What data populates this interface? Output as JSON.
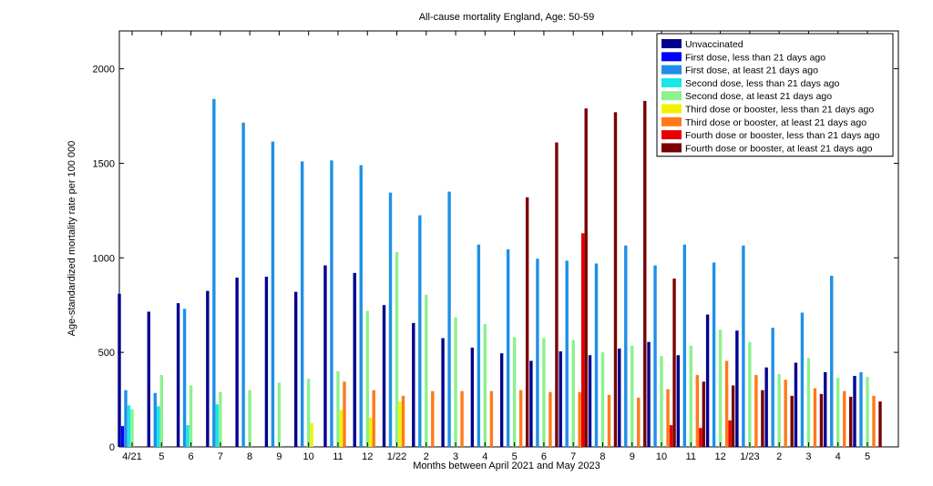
{
  "chart_data": {
    "type": "bar",
    "title": "All-cause mortality England, Age: 50-59",
    "xlabel": "Months between April 2021 and May 2023",
    "ylabel": "Age-standardized mortality rate per 100 000",
    "ylim": [
      0,
      2200
    ],
    "yticks": [
      0,
      500,
      1000,
      1500,
      2000
    ],
    "grid": false,
    "legend_position": "top-right",
    "categories": [
      "4/21",
      "5",
      "6",
      "7",
      "8",
      "9",
      "10",
      "11",
      "12",
      "1/22",
      "2",
      "3",
      "4",
      "5",
      "6",
      "7",
      "8",
      "9",
      "10",
      "11",
      "12",
      "1/23",
      "2",
      "3",
      "4",
      "5"
    ],
    "series": [
      {
        "name": "Unvaccinated",
        "color": "#00008f",
        "values": [
          810,
          715,
          760,
          825,
          895,
          900,
          820,
          960,
          920,
          750,
          655,
          575,
          525,
          495,
          455,
          505,
          485,
          520,
          555,
          485,
          700,
          615,
          420,
          445,
          395,
          375
        ]
      },
      {
        "name": "First dose, less than 21 days ago",
        "color": "#0000ff",
        "values": [
          110,
          null,
          null,
          null,
          null,
          null,
          null,
          null,
          null,
          null,
          null,
          null,
          null,
          null,
          null,
          null,
          null,
          null,
          null,
          null,
          null,
          null,
          null,
          null,
          null,
          null
        ]
      },
      {
        "name": "First dose, at least 21 days ago",
        "color": "#1e90e6",
        "values": [
          300,
          285,
          730,
          1840,
          1715,
          1615,
          1510,
          1515,
          1490,
          1345,
          1225,
          1350,
          1070,
          1045,
          995,
          985,
          970,
          1065,
          960,
          1070,
          975,
          1065,
          630,
          710,
          905,
          395
        ]
      },
      {
        "name": "Second dose, less than 21 days ago",
        "color": "#19e6e6",
        "values": [
          220,
          215,
          115,
          225,
          null,
          null,
          null,
          null,
          null,
          null,
          null,
          null,
          null,
          null,
          null,
          null,
          null,
          null,
          null,
          null,
          null,
          null,
          null,
          null,
          null,
          null
        ]
      },
      {
        "name": "Second dose, at least 21 days ago",
        "color": "#8cf28c",
        "values": [
          200,
          380,
          325,
          290,
          300,
          340,
          360,
          400,
          720,
          1030,
          805,
          685,
          650,
          580,
          575,
          565,
          500,
          535,
          480,
          535,
          620,
          555,
          385,
          470,
          365,
          370
        ]
      },
      {
        "name": "Third dose or booster, less than 21 days ago",
        "color": "#f2f200",
        "values": [
          null,
          null,
          null,
          null,
          null,
          null,
          125,
          195,
          155,
          240,
          null,
          null,
          null,
          null,
          null,
          null,
          null,
          null,
          null,
          null,
          null,
          null,
          null,
          null,
          null,
          null
        ]
      },
      {
        "name": "Third dose or booster, at least 21 days ago",
        "color": "#ff7a1a",
        "values": [
          null,
          null,
          null,
          null,
          null,
          null,
          null,
          345,
          300,
          270,
          295,
          295,
          295,
          300,
          290,
          290,
          275,
          260,
          305,
          380,
          455,
          380,
          355,
          310,
          295,
          270
        ]
      },
      {
        "name": "Fourth dose or booster, less than 21 days ago",
        "color": "#e60000",
        "values": [
          null,
          null,
          null,
          null,
          null,
          null,
          null,
          null,
          null,
          null,
          null,
          null,
          null,
          null,
          null,
          1130,
          null,
          null,
          115,
          100,
          140,
          null,
          null,
          null,
          null,
          null
        ]
      },
      {
        "name": "Fourth dose or booster, at least 21 days ago",
        "color": "#7a0000",
        "values": [
          null,
          null,
          null,
          null,
          null,
          null,
          null,
          null,
          null,
          null,
          null,
          null,
          null,
          1320,
          1610,
          1790,
          1770,
          1830,
          890,
          345,
          325,
          300,
          270,
          280,
          265,
          240
        ]
      }
    ]
  }
}
